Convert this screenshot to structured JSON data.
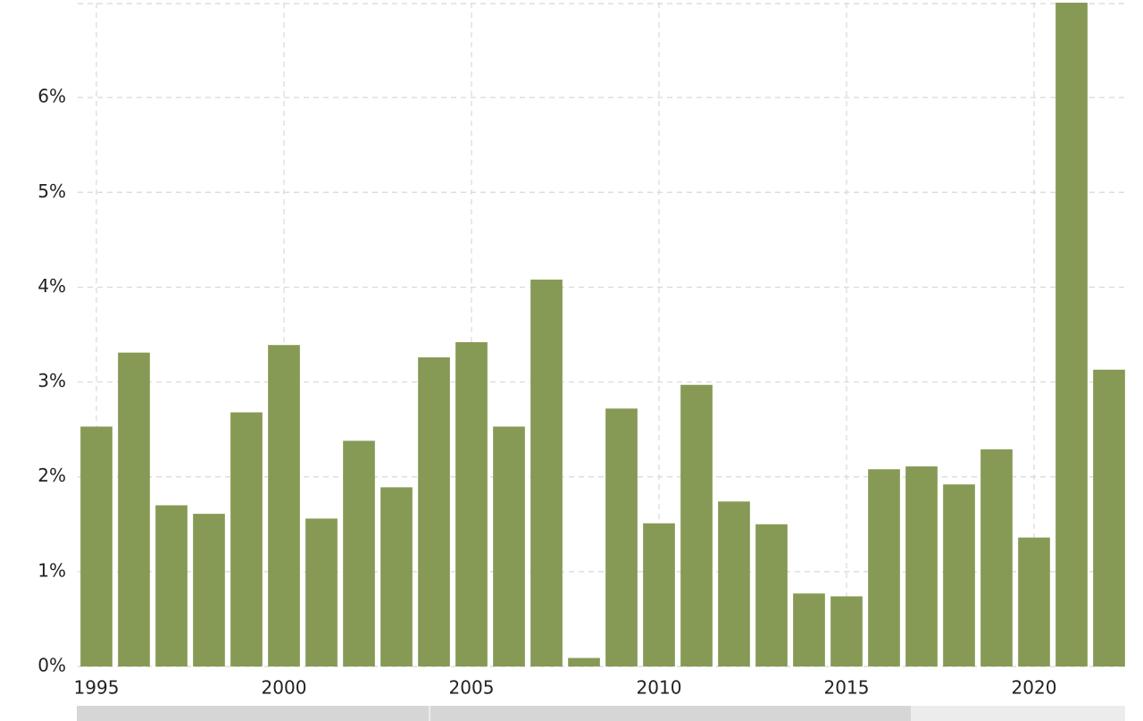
{
  "chart_data": {
    "type": "bar",
    "x": [
      1995,
      1996,
      1997,
      1998,
      1999,
      2000,
      2001,
      2002,
      2003,
      2004,
      2005,
      2006,
      2007,
      2008,
      2009,
      2010,
      2011,
      2012,
      2013,
      2014,
      2015,
      2016,
      2017,
      2018,
      2019,
      2020,
      2021,
      2022
    ],
    "values": [
      2.53,
      3.31,
      1.7,
      1.61,
      2.68,
      3.39,
      1.56,
      2.38,
      1.89,
      3.26,
      3.42,
      2.53,
      4.08,
      0.09,
      2.72,
      1.51,
      2.97,
      1.74,
      1.5,
      0.77,
      0.74,
      2.08,
      2.11,
      1.92,
      2.29,
      1.36,
      7.0,
      3.13
    ],
    "color": "#879a55",
    "xlim": [
      1994.5,
      2022.5
    ],
    "xticks": [
      1995,
      2000,
      2005,
      2010,
      2015,
      2020
    ],
    "ylim": [
      0,
      7
    ],
    "yticks": [
      {
        "value": 0,
        "label": "0%"
      },
      {
        "value": 1,
        "label": "1%"
      },
      {
        "value": 2,
        "label": "2%"
      },
      {
        "value": 3,
        "label": "3%"
      },
      {
        "value": 4,
        "label": "4%"
      },
      {
        "value": 5,
        "label": "5%"
      },
      {
        "value": 6,
        "label": "6%"
      }
    ],
    "grid": true
  }
}
